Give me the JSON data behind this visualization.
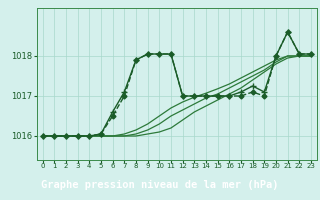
{
  "title": "Graphe pression niveau de la mer (hPa)",
  "bg_color": "#d4f0ec",
  "grid_color": "#a8d8cc",
  "footer_bg": "#2d6e2d",
  "footer_text_color": "#ffffff",
  "footer_fontsize": 7.5,
  "xlim": [
    -0.5,
    23.5
  ],
  "ylim": [
    1015.4,
    1019.2
  ],
  "yticks": [
    1016,
    1017,
    1018
  ],
  "xtick_labels": [
    "0",
    "1",
    "2",
    "3",
    "4",
    "5",
    "6",
    "7",
    "8",
    "9",
    "10",
    "11",
    "12",
    "13",
    "14",
    "15",
    "16",
    "17",
    "18",
    "19",
    "20",
    "21",
    "22",
    "23"
  ],
  "series": [
    {
      "comment": "smooth line 1 - gradual rise, starts at 1016, ends 1018",
      "x": [
        0,
        1,
        2,
        3,
        4,
        5,
        6,
        7,
        8,
        9,
        10,
        11,
        12,
        13,
        14,
        15,
        16,
        17,
        18,
        19,
        20,
        21,
        22,
        23
      ],
      "y": [
        1016.0,
        1016.0,
        1016.0,
        1016.0,
        1016.0,
        1016.0,
        1016.0,
        1016.0,
        1016.0,
        1016.05,
        1016.1,
        1016.2,
        1016.4,
        1016.6,
        1016.75,
        1016.9,
        1017.05,
        1017.2,
        1017.4,
        1017.6,
        1017.8,
        1017.95,
        1018.0,
        1018.0
      ],
      "color": "#2d7a3a",
      "lw": 0.9,
      "marker": null,
      "ms": 0,
      "ls": "-",
      "zorder": 2
    },
    {
      "comment": "smooth line 2 - slightly faster rise",
      "x": [
        0,
        1,
        2,
        3,
        4,
        5,
        6,
        7,
        8,
        9,
        10,
        11,
        12,
        13,
        14,
        15,
        16,
        17,
        18,
        19,
        20,
        21,
        22,
        23
      ],
      "y": [
        1016.0,
        1016.0,
        1016.0,
        1016.0,
        1016.0,
        1016.0,
        1016.0,
        1016.0,
        1016.05,
        1016.15,
        1016.3,
        1016.5,
        1016.65,
        1016.8,
        1016.95,
        1017.05,
        1017.2,
        1017.35,
        1017.5,
        1017.65,
        1017.85,
        1018.0,
        1018.0,
        1018.0
      ],
      "color": "#2d7a3a",
      "lw": 0.9,
      "marker": null,
      "ms": 0,
      "ls": "-",
      "zorder": 2
    },
    {
      "comment": "smooth line 3 - faster rise still",
      "x": [
        0,
        1,
        2,
        3,
        4,
        5,
        6,
        7,
        8,
        9,
        10,
        11,
        12,
        13,
        14,
        15,
        16,
        17,
        18,
        19,
        20,
        21,
        22,
        23
      ],
      "y": [
        1016.0,
        1016.0,
        1016.0,
        1016.0,
        1016.0,
        1016.0,
        1016.0,
        1016.05,
        1016.15,
        1016.3,
        1016.5,
        1016.7,
        1016.85,
        1016.97,
        1017.07,
        1017.18,
        1017.3,
        1017.45,
        1017.6,
        1017.75,
        1017.9,
        1018.0,
        1018.0,
        1018.0
      ],
      "color": "#2d7a3a",
      "lw": 0.9,
      "marker": null,
      "ms": 0,
      "ls": "-",
      "zorder": 2
    },
    {
      "comment": "dotted line with diamond markers - sharp spikes at 9 and 21",
      "x": [
        0,
        1,
        2,
        3,
        4,
        5,
        6,
        7,
        8,
        9,
        10,
        11,
        12,
        13,
        14,
        15,
        16,
        17,
        18,
        19,
        20,
        21,
        22,
        23
      ],
      "y": [
        1016.0,
        1016.0,
        1016.0,
        1016.0,
        1016.0,
        1016.05,
        1016.5,
        1017.0,
        1017.9,
        1018.05,
        1018.05,
        1018.05,
        1017.0,
        1017.0,
        1017.0,
        1017.0,
        1017.0,
        1017.0,
        1017.1,
        1017.0,
        1018.0,
        1018.6,
        1018.05,
        1018.05
      ],
      "color": "#1a5c28",
      "lw": 1.0,
      "marker": "D",
      "ms": 2.5,
      "ls": "--",
      "zorder": 4
    },
    {
      "comment": "solid line with + markers - similar to dotted but solid, with spike at 6 then drop, spike at 21",
      "x": [
        0,
        1,
        2,
        3,
        4,
        5,
        6,
        7,
        8,
        9,
        10,
        11,
        12,
        13,
        14,
        15,
        16,
        17,
        18,
        19,
        20,
        21,
        22,
        23
      ],
      "y": [
        1016.0,
        1016.0,
        1016.0,
        1016.0,
        1016.0,
        1016.05,
        1016.6,
        1017.1,
        1017.9,
        1018.05,
        1018.05,
        1018.05,
        1017.0,
        1017.0,
        1017.0,
        1017.0,
        1017.0,
        1017.1,
        1017.25,
        1017.1,
        1018.0,
        1018.6,
        1018.05,
        1018.05
      ],
      "color": "#1a5c28",
      "lw": 1.0,
      "marker": "+",
      "ms": 4.5,
      "ls": "-",
      "zorder": 5
    }
  ]
}
